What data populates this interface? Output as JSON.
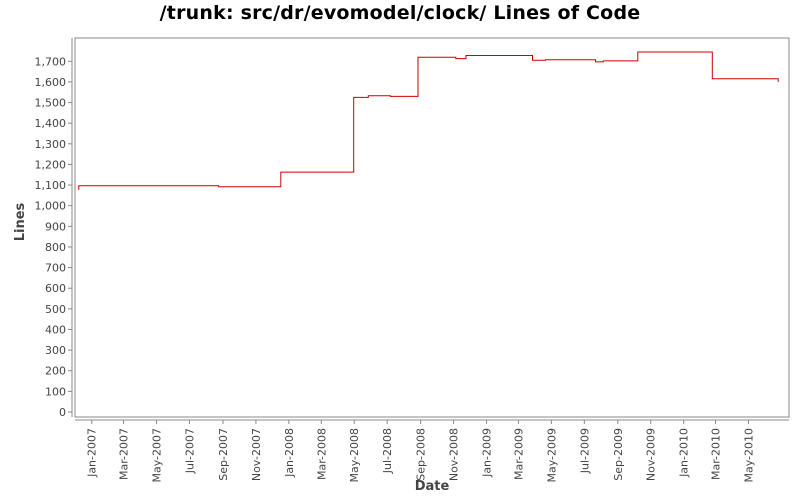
{
  "chart_data": {
    "type": "line",
    "title": "/trunk: src/dr/evomodel/clock/ Lines of Code",
    "xlabel": "Date",
    "ylabel": "Lines",
    "ylim": [
      0,
      1750
    ],
    "xlim": [
      "2006-12-01",
      "2010-07-15"
    ],
    "y_ticks": [
      0,
      100,
      200,
      300,
      400,
      500,
      600,
      700,
      800,
      900,
      1000,
      1100,
      1200,
      1300,
      1400,
      1500,
      1600,
      1700
    ],
    "x_ticks": [
      "Jan-2007",
      "Mar-2007",
      "May-2007",
      "Jul-2007",
      "Sep-2007",
      "Nov-2007",
      "Jan-2008",
      "Mar-2008",
      "May-2008",
      "Jul-2008",
      "Sep-2008",
      "Nov-2008",
      "Jan-2009",
      "Mar-2009",
      "May-2009",
      "Jul-2009",
      "Sep-2009",
      "Nov-2009",
      "Jan-2010",
      "Mar-2010",
      "May-2010"
    ],
    "x_tick_dates": [
      "2007-01-01",
      "2007-03-01",
      "2007-05-01",
      "2007-07-01",
      "2007-09-01",
      "2007-11-01",
      "2008-01-01",
      "2008-03-01",
      "2008-05-01",
      "2008-07-01",
      "2008-09-01",
      "2008-11-01",
      "2009-01-01",
      "2009-03-01",
      "2009-05-01",
      "2009-07-01",
      "2009-09-01",
      "2009-11-01",
      "2010-01-01",
      "2010-03-01",
      "2010-05-01"
    ],
    "grid": false,
    "series": [
      {
        "color": "#cc0000",
        "step": true,
        "points": [
          {
            "x": "2006-12-07",
            "y": 1080
          },
          {
            "x": "2006-12-08",
            "y": 1097
          },
          {
            "x": "2007-08-24",
            "y": 1092
          },
          {
            "x": "2007-12-17",
            "y": 1163
          },
          {
            "x": "2008-04-30",
            "y": 1525
          },
          {
            "x": "2008-05-27",
            "y": 1533
          },
          {
            "x": "2008-07-07",
            "y": 1530
          },
          {
            "x": "2008-08-27",
            "y": 1720
          },
          {
            "x": "2008-11-05",
            "y": 1713
          },
          {
            "x": "2008-11-24",
            "y": 1728
          },
          {
            "x": "2009-03-27",
            "y": 1705
          },
          {
            "x": "2009-04-20",
            "y": 1708
          },
          {
            "x": "2009-07-22",
            "y": 1697
          },
          {
            "x": "2009-08-05",
            "y": 1702
          },
          {
            "x": "2009-10-08",
            "y": 1745
          },
          {
            "x": "2010-02-23",
            "y": 1615
          },
          {
            "x": "2010-06-24",
            "y": 1615
          },
          {
            "x": "2010-06-25",
            "y": 1600
          }
        ]
      }
    ]
  }
}
